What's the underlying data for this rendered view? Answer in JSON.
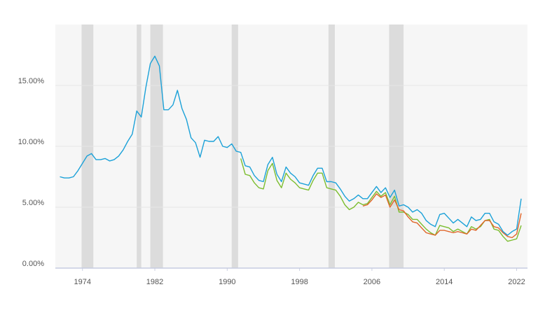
{
  "chart_data": {
    "type": "line",
    "x": [
      1971.5,
      1972,
      1972.5,
      1973,
      1973.5,
      1974,
      1974.5,
      1975,
      1975.5,
      1976,
      1976.5,
      1977,
      1977.5,
      1978,
      1978.5,
      1979,
      1979.5,
      1980,
      1980.5,
      1981,
      1981.5,
      1982,
      1982.5,
      1983,
      1983.5,
      1984,
      1984.5,
      1985,
      1985.5,
      1986,
      1986.5,
      1987,
      1987.5,
      1988,
      1988.5,
      1989,
      1989.5,
      1990,
      1990.5,
      1991,
      1991.5,
      1992,
      1992.5,
      1993,
      1993.5,
      1994,
      1994.5,
      1995,
      1995.5,
      1996,
      1996.5,
      1997,
      1997.5,
      1998,
      1998.5,
      1999,
      1999.5,
      2000,
      2000.5,
      2001,
      2001.5,
      2002,
      2002.5,
      2003,
      2003.5,
      2004,
      2004.5,
      2005,
      2005.5,
      2006,
      2006.5,
      2007,
      2007.5,
      2008,
      2008.5,
      2009,
      2009.5,
      2010,
      2010.5,
      2011,
      2011.5,
      2012,
      2012.5,
      2013,
      2013.5,
      2014,
      2014.5,
      2015,
      2015.5,
      2016,
      2016.5,
      2017,
      2017.5,
      2018,
      2018.5,
      2019,
      2019.5,
      2020,
      2020.5,
      2021,
      2021.5,
      2022,
      2022.5
    ],
    "series": [
      {
        "color": "#7cbd2f",
        "values": [
          null,
          null,
          null,
          null,
          null,
          null,
          null,
          null,
          null,
          null,
          null,
          null,
          null,
          null,
          null,
          null,
          null,
          null,
          null,
          null,
          null,
          null,
          null,
          null,
          null,
          null,
          null,
          null,
          null,
          null,
          null,
          null,
          null,
          null,
          null,
          null,
          null,
          null,
          null,
          null,
          9.0,
          7.7,
          7.6,
          7.0,
          6.6,
          6.5,
          8.0,
          8.6,
          7.2,
          6.6,
          7.8,
          7.3,
          7.0,
          6.6,
          6.5,
          6.4,
          7.2,
          7.8,
          7.8,
          6.6,
          6.5,
          6.4,
          5.9,
          5.2,
          4.8,
          5.0,
          5.4,
          5.2,
          5.3,
          5.8,
          6.3,
          5.9,
          6.2,
          5.2,
          5.9,
          4.6,
          4.6,
          4.4,
          4.0,
          4.0,
          3.6,
          3.2,
          2.9,
          2.7,
          3.5,
          3.4,
          3.3,
          3.0,
          3.2,
          3.0,
          2.8,
          3.4,
          3.2,
          3.4,
          3.9,
          4.0,
          3.2,
          3.1,
          2.6,
          2.2,
          2.3,
          2.4,
          3.5
        ]
      },
      {
        "color": "#e0662a",
        "values": [
          null,
          null,
          null,
          null,
          null,
          null,
          null,
          null,
          null,
          null,
          null,
          null,
          null,
          null,
          null,
          null,
          null,
          null,
          null,
          null,
          null,
          null,
          null,
          null,
          null,
          null,
          null,
          null,
          null,
          null,
          null,
          null,
          null,
          null,
          null,
          null,
          null,
          null,
          null,
          null,
          null,
          null,
          null,
          null,
          null,
          null,
          null,
          null,
          null,
          null,
          null,
          null,
          null,
          null,
          null,
          null,
          null,
          null,
          null,
          null,
          null,
          null,
          null,
          null,
          null,
          null,
          null,
          5.1,
          5.2,
          5.6,
          6.1,
          5.8,
          6.0,
          5.0,
          5.6,
          4.8,
          4.7,
          4.2,
          3.8,
          3.7,
          3.3,
          2.9,
          2.8,
          2.7,
          3.1,
          3.1,
          3.0,
          2.9,
          3.0,
          2.9,
          2.8,
          3.2,
          3.1,
          3.5,
          3.9,
          3.9,
          3.4,
          3.3,
          2.9,
          2.6,
          2.5,
          2.8,
          4.5
        ]
      },
      {
        "color": "#1ba1d8",
        "values": [
          7.5,
          7.4,
          7.4,
          7.5,
          8.0,
          8.6,
          9.2,
          9.4,
          8.9,
          8.9,
          9.0,
          8.8,
          8.9,
          9.2,
          9.7,
          10.4,
          11.0,
          12.9,
          12.4,
          14.8,
          16.8,
          17.4,
          16.6,
          13.0,
          13.0,
          13.4,
          14.6,
          13.1,
          12.2,
          10.7,
          10.3,
          9.1,
          10.5,
          10.4,
          10.4,
          10.8,
          10.0,
          9.9,
          10.2,
          9.6,
          9.5,
          8.4,
          8.3,
          7.6,
          7.2,
          7.1,
          8.5,
          9.1,
          7.7,
          7.1,
          8.3,
          7.8,
          7.5,
          7.0,
          6.9,
          6.8,
          7.6,
          8.2,
          8.2,
          7.1,
          7.1,
          7.0,
          6.5,
          5.9,
          5.5,
          5.7,
          6.0,
          5.7,
          5.7,
          6.2,
          6.7,
          6.2,
          6.6,
          5.8,
          6.4,
          5.1,
          5.2,
          5.0,
          4.6,
          4.8,
          4.5,
          3.9,
          3.6,
          3.4,
          4.4,
          4.5,
          4.1,
          3.7,
          4.0,
          3.7,
          3.4,
          4.2,
          3.9,
          4.0,
          4.5,
          4.5,
          3.8,
          3.6,
          3.0,
          2.7,
          3.0,
          3.2,
          5.7
        ]
      }
    ],
    "recessions": [
      [
        1973.9,
        1975.2
      ],
      [
        1980.0,
        1980.5
      ],
      [
        1981.5,
        1982.9
      ],
      [
        1990.5,
        1991.2
      ],
      [
        2001.2,
        2001.9
      ],
      [
        2007.9,
        2009.5
      ]
    ],
    "xlim": [
      1971,
      2023.2
    ],
    "xticks": [
      1974,
      1982,
      1990,
      1998,
      2006,
      2014,
      2022
    ],
    "ylim": [
      0,
      20
    ],
    "yticks": [
      {
        "value": 0,
        "label": "0.00%"
      },
      {
        "value": 5,
        "label": "5.00%"
      },
      {
        "value": 10,
        "label": "10.00%"
      },
      {
        "value": 15,
        "label": "15.00%"
      }
    ],
    "grid": true
  }
}
